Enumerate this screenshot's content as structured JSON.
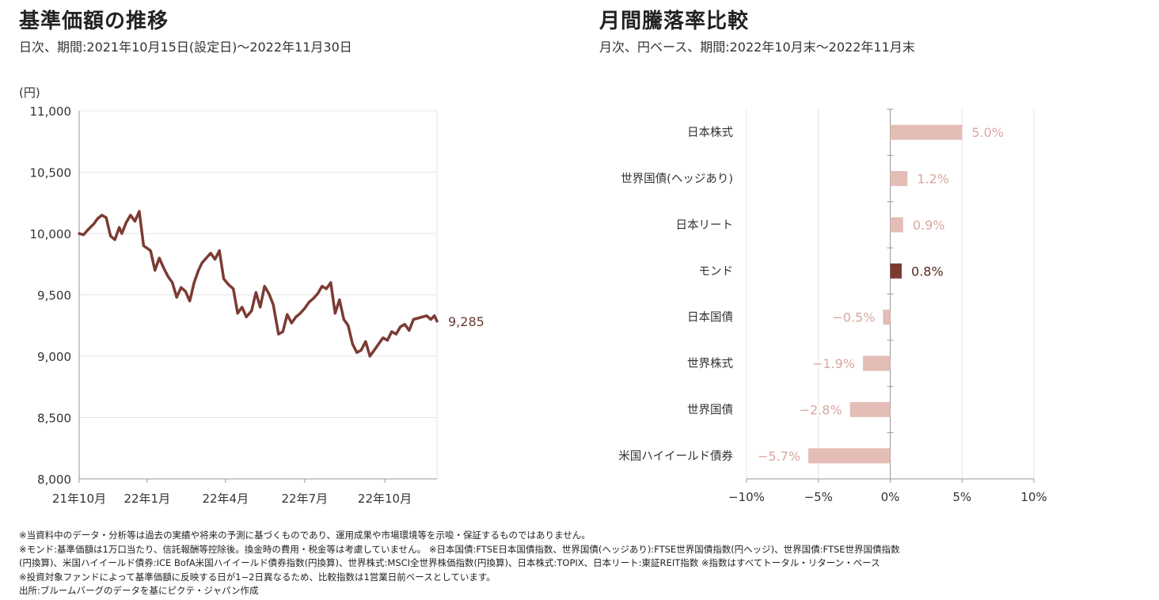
{
  "left": {
    "title": "基準価額の推移",
    "subtitle": "日次、期間:2021年10月15日(設定日)〜2022年11月30日"
  },
  "right": {
    "title": "月間騰落率比較",
    "subtitle": "月次、円ベース、期間:2022年10月末〜2022年11月末"
  },
  "chart_data": [
    {
      "type": "line",
      "unit_label": "(円)",
      "ylim": [
        8000,
        11000
      ],
      "yticks": [
        "11,000",
        "10,500",
        "10,000",
        "9,500",
        "9,000",
        "8,500",
        "8,000"
      ],
      "ytick_values": [
        11000,
        10500,
        10000,
        9500,
        9000,
        8500,
        8000
      ],
      "xticks": [
        "21年10月",
        "22年1月",
        "22年4月",
        "22年7月",
        "22年10月"
      ],
      "xtick_dates": [
        "2021-10-15",
        "2022-01-01",
        "2022-04-01",
        "2022-07-01",
        "2022-10-01"
      ],
      "x_range": [
        "2021-10-15",
        "2022-11-30"
      ],
      "grid": true,
      "end_label": "9,285",
      "color": "#7b3b33",
      "series": [
        {
          "x": [
            "2021-10-15",
            "2021-10-20",
            "2021-10-25",
            "2021-11-01",
            "2021-11-05",
            "2021-11-10",
            "2021-11-15",
            "2021-11-20",
            "2021-11-25",
            "2021-11-30",
            "2021-12-03",
            "2021-12-08",
            "2021-12-13",
            "2021-12-18",
            "2021-12-23",
            "2021-12-28",
            "2022-01-05",
            "2022-01-10",
            "2022-01-15",
            "2022-01-20",
            "2022-01-25",
            "2022-01-30",
            "2022-02-04",
            "2022-02-09",
            "2022-02-14",
            "2022-02-19",
            "2022-02-24",
            "2022-03-01",
            "2022-03-05",
            "2022-03-10",
            "2022-03-15",
            "2022-03-20",
            "2022-03-25",
            "2022-03-30",
            "2022-04-05",
            "2022-04-10",
            "2022-04-15",
            "2022-04-20",
            "2022-04-25",
            "2022-05-01",
            "2022-05-06",
            "2022-05-11",
            "2022-05-16",
            "2022-05-21",
            "2022-05-26",
            "2022-06-01",
            "2022-06-06",
            "2022-06-11",
            "2022-06-16",
            "2022-06-21",
            "2022-06-26",
            "2022-07-01",
            "2022-07-06",
            "2022-07-11",
            "2022-07-16",
            "2022-07-21",
            "2022-07-26",
            "2022-07-31",
            "2022-08-05",
            "2022-08-10",
            "2022-08-15",
            "2022-08-20",
            "2022-08-25",
            "2022-08-30",
            "2022-09-04",
            "2022-09-09",
            "2022-09-14",
            "2022-09-19",
            "2022-09-24",
            "2022-09-29",
            "2022-10-04",
            "2022-10-09",
            "2022-10-14",
            "2022-10-19",
            "2022-10-24",
            "2022-10-29",
            "2022-11-03",
            "2022-11-08",
            "2022-11-13",
            "2022-11-18",
            "2022-11-23",
            "2022-11-27",
            "2022-11-30"
          ],
          "values": [
            10000,
            9990,
            10030,
            10080,
            10120,
            10150,
            10130,
            9980,
            9950,
            10050,
            10000,
            10090,
            10150,
            10100,
            10180,
            9900,
            9860,
            9700,
            9800,
            9720,
            9650,
            9600,
            9480,
            9560,
            9530,
            9450,
            9600,
            9700,
            9760,
            9800,
            9840,
            9790,
            9860,
            9630,
            9580,
            9550,
            9350,
            9400,
            9320,
            9370,
            9520,
            9400,
            9570,
            9510,
            9420,
            9180,
            9200,
            9340,
            9270,
            9320,
            9350,
            9390,
            9440,
            9470,
            9510,
            9570,
            9550,
            9600,
            9350,
            9460,
            9300,
            9250,
            9100,
            9030,
            9050,
            9120,
            9000,
            9050,
            9100,
            9150,
            9130,
            9200,
            9180,
            9240,
            9260,
            9210,
            9300,
            9310,
            9320,
            9330,
            9300,
            9330,
            9285
          ]
        }
      ]
    },
    {
      "type": "bar",
      "orientation": "horizontal",
      "categories": [
        "日本株式",
        "世界国債(ヘッジあり)",
        "日本リート",
        "モンド",
        "日本国債",
        "世界株式",
        "世界国債",
        "米国ハイイールド債券"
      ],
      "values": [
        5.0,
        1.2,
        0.9,
        0.8,
        -0.5,
        -1.9,
        -2.8,
        -5.7
      ],
      "value_labels": [
        "5.0%",
        "1.2%",
        "0.9%",
        "0.8%",
        "−0.5%",
        "−1.9%",
        "−2.8%",
        "−5.7%"
      ],
      "highlight_index": 3,
      "xlim": [
        -10,
        10
      ],
      "xticks": [
        "−10%",
        "−5%",
        "0%",
        "5%",
        "10%"
      ],
      "xtick_values": [
        -10,
        -5,
        0,
        5,
        10
      ],
      "colors": {
        "bar": "#e3bdb6",
        "highlight": "#7b3b33",
        "label": "#d9a79e",
        "highlight_label": "#5a2520"
      }
    }
  ],
  "notes": [
    "※当資料中のデータ・分析等は過去の実績や将来の予測に基づくものであり、運用成果や市場環境等を示唆・保証するものではありません。",
    "※モンド:基準価額は1万口当たり、信託報酬等控除後。換金時の費用・税金等は考慮していません。 ※日本国債:FTSE日本国債指数、世界国債(ヘッジあり):FTSE世界国債指数(円ヘッジ)、世界国債:FTSE世界国債指数",
    "(円換算)、米国ハイイールド債券:ICE BofA米国ハイイールド債券指数(円換算)、世界株式:MSCI全世界株価指数(円換算)、日本株式:TOPIX、日本リート:東証REIT指数 ※指数はすべてトータル・リターン・ベース",
    "※投資対象ファンドによって基準価額に反映する日が1−2日異なるため、比較指数は1営業日前ベースとしています。",
    "出所:ブルームバーグのデータを基にピクテ・ジャパン作成"
  ]
}
